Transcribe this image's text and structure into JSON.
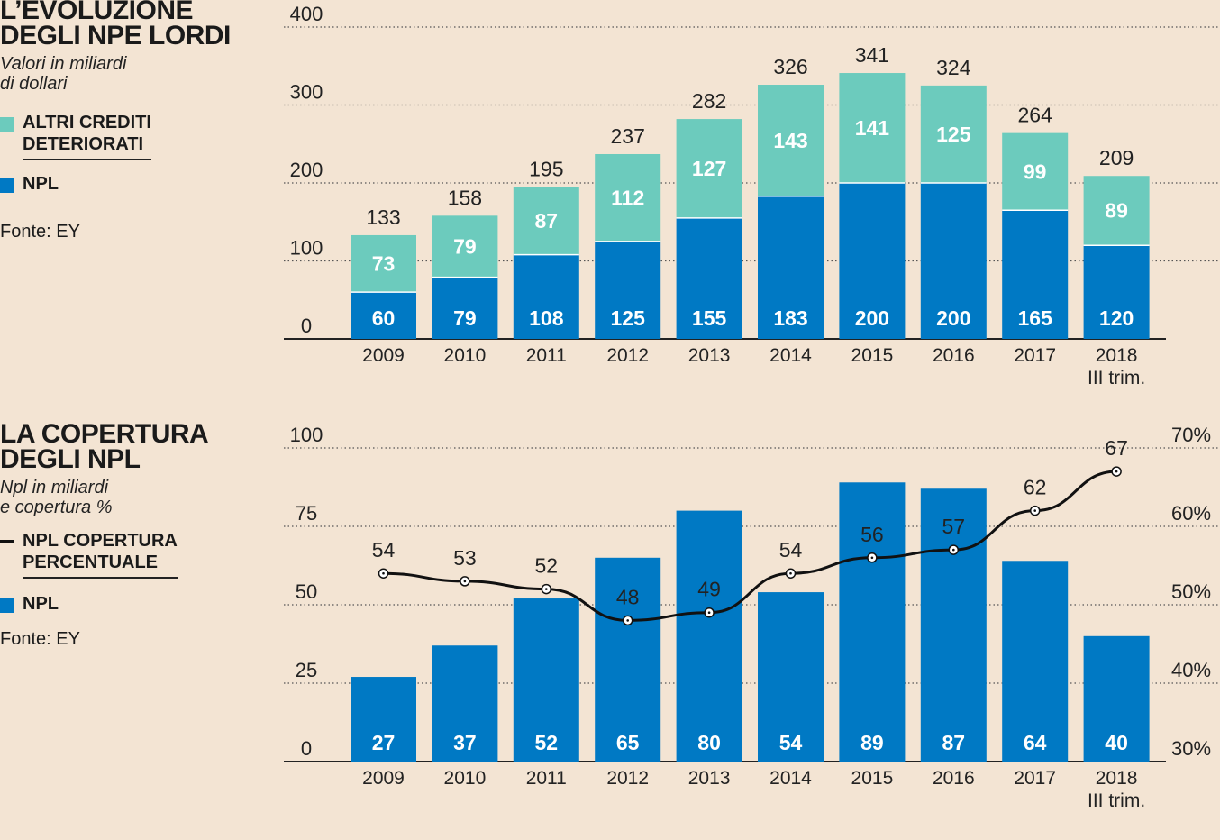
{
  "colors": {
    "background": "#f3e4d3",
    "npl": "#0079c4",
    "altri": "#6ccbbd",
    "line": "#111111"
  },
  "chart1": {
    "title_line1": "L’EVOLUZIONE",
    "title_line2": "DEGLI NPE LORDI",
    "subtitle_line1": "Valori in miliardi",
    "subtitle_line2": "di dollari",
    "legend_altri_line1": "ALTRI CREDITI",
    "legend_altri_line2": "DETERIORATI",
    "legend_npl": "NPL",
    "source": "Fonte: EY"
  },
  "chart2": {
    "title_line1": "LA COPERTURA",
    "title_line2": "DEGLI NPL",
    "subtitle_line1": "Npl in miliardi",
    "subtitle_line2": "e copertura %",
    "legend_line_line1": "NPL COPERTURA",
    "legend_line_line2": "PERCENTUALE",
    "legend_npl": "NPL",
    "source": "Fonte: EY"
  },
  "chart_data": [
    {
      "type": "bar",
      "stacked": true,
      "categories": [
        "2009",
        "2010",
        "2011",
        "2012",
        "2013",
        "2014",
        "2015",
        "2016",
        "2017",
        "2018"
      ],
      "last_category_sublabel": "III trim.",
      "series": [
        {
          "name": "NPL",
          "color": "#0079c4",
          "values": [
            60,
            79,
            108,
            125,
            155,
            183,
            200,
            200,
            165,
            120
          ]
        },
        {
          "name": "ALTRI CREDITI DETERIORATI",
          "color": "#6ccbbd",
          "values": [
            73,
            79,
            87,
            112,
            127,
            143,
            141,
            125,
            99,
            89
          ]
        }
      ],
      "totals": [
        133,
        158,
        195,
        237,
        282,
        326,
        341,
        324,
        264,
        209
      ],
      "ylim": [
        0,
        400
      ],
      "yticks": [
        0,
        100,
        200,
        300,
        400
      ],
      "grid": true
    },
    {
      "type": "bar",
      "categories": [
        "2009",
        "2010",
        "2011",
        "2012",
        "2013",
        "2014",
        "2015",
        "2016",
        "2017",
        "2018"
      ],
      "last_category_sublabel": "III trim.",
      "series": [
        {
          "name": "NPL",
          "color": "#0079c4",
          "values": [
            27,
            37,
            52,
            65,
            80,
            54,
            89,
            87,
            64,
            40
          ]
        },
        {
          "name": "NPL COPERTURA PERCENTUALE",
          "type": "line",
          "axis": "right",
          "color": "#111111",
          "values": [
            54,
            53,
            52,
            48,
            49,
            54,
            56,
            57,
            62,
            67
          ]
        }
      ],
      "ylim": [
        0,
        100
      ],
      "yticks": [
        0,
        25,
        50,
        75,
        100
      ],
      "y2lim": [
        30,
        70
      ],
      "y2ticks": [
        "30%",
        "40%",
        "50%",
        "60%",
        "70%"
      ],
      "grid": true
    }
  ]
}
